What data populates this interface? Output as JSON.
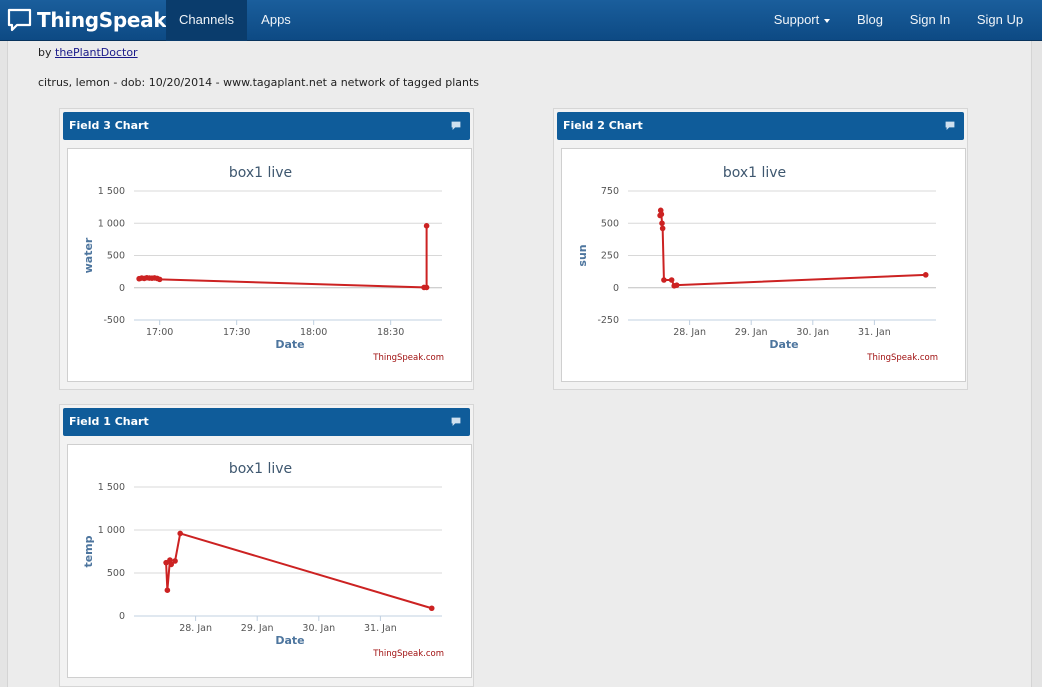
{
  "nav": {
    "brand": "ThingSpeak",
    "left": [
      "Channels",
      "Apps"
    ],
    "right": [
      "Support",
      "Blog",
      "Sign In",
      "Sign Up"
    ]
  },
  "byline": {
    "prefix": "by ",
    "author": "thePlantDoctor"
  },
  "description": "citrus, lemon - dob: 10/20/2014 - www.tagaplant.net a network of tagged plants",
  "colors": {
    "navbar": "#0f4f8c",
    "panel_header": "#0f5c9a",
    "series": "#cc2222"
  },
  "chart_data": [
    {
      "panel": "Field 3 Chart",
      "type": "line",
      "title": "box1 live",
      "xlabel": "Date",
      "ylabel": "water",
      "credit": "ThingSpeak.com",
      "xlim": [
        "16:50",
        "18:50"
      ],
      "ylim": [
        -500,
        1500
      ],
      "yticks": [
        1500,
        1000,
        500,
        0,
        -500
      ],
      "xticks": [
        "17:00",
        "17:30",
        "18:00",
        "18:30"
      ],
      "series": [
        {
          "x": [
            "16:52",
            "16:53",
            "16:54",
            "16:55",
            "16:56",
            "16:57",
            "16:58",
            "16:59",
            "17:00",
            "18:43",
            "18:44",
            "18:44"
          ],
          "y": [
            140,
            150,
            145,
            155,
            150,
            148,
            152,
            145,
            130,
            5,
            5,
            960
          ]
        }
      ]
    },
    {
      "panel": "Field 2 Chart",
      "type": "line",
      "title": "box1 live",
      "xlabel": "Date",
      "ylabel": "sun",
      "credit": "ThingSpeak.com",
      "xlim": [
        "2015-01-27",
        "2015-02-01"
      ],
      "ylim": [
        -250,
        750
      ],
      "yticks": [
        750,
        500,
        250,
        0,
        -250
      ],
      "xticks": [
        "28. Jan",
        "29. Jan",
        "30. Jan",
        "31. Jan"
      ],
      "series": [
        {
          "x": [
            "2015-01-27 12:30",
            "2015-01-27 12:45",
            "2015-01-27 13:00",
            "2015-01-27 13:15",
            "2015-01-27 13:30",
            "2015-01-27 14:00",
            "2015-01-27 17:00",
            "2015-01-27 18:00",
            "2015-01-27 19:00",
            "2015-01-31 20:00"
          ],
          "y": [
            560,
            600,
            570,
            500,
            460,
            60,
            60,
            15,
            20,
            100
          ]
        }
      ]
    },
    {
      "panel": "Field 1 Chart",
      "type": "line",
      "title": "box1 live",
      "xlabel": "Date",
      "ylabel": "temp",
      "credit": "ThingSpeak.com",
      "xlim": [
        "2015-01-27",
        "2015-02-01"
      ],
      "ylim": [
        0,
        1500
      ],
      "yticks": [
        1500,
        1000,
        500,
        0
      ],
      "xticks": [
        "28. Jan",
        "29. Jan",
        "30. Jan",
        "31. Jan"
      ],
      "series": [
        {
          "x": [
            "2015-01-27 12:30",
            "2015-01-27 13:00",
            "2015-01-27 14:00",
            "2015-01-27 14:30",
            "2015-01-27 16:00",
            "2015-01-27 18:00",
            "2015-01-31 20:00"
          ],
          "y": [
            620,
            300,
            650,
            600,
            640,
            960,
            90
          ]
        }
      ]
    }
  ]
}
